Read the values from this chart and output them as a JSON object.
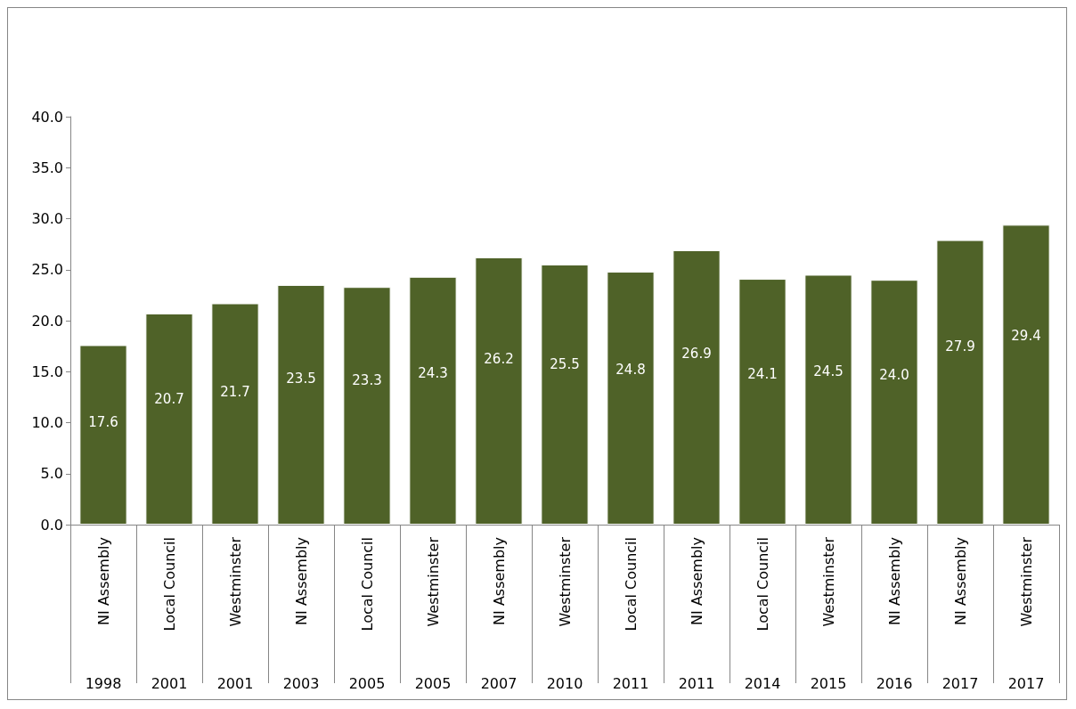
{
  "chart_data": {
    "type": "bar",
    "categories": [
      "NI Assembly\n1998",
      "Local Council\n2001",
      "Westminster\n2001",
      "NI Assembly\n2003",
      "Local Council\n2005",
      "Westminster\n2005",
      "NI Assembly\n2007",
      "Westminster\n2010",
      "Local Council\n2011",
      "NI Assembly\n2011",
      "Local Council\n2014",
      "Westminster\n2015",
      "NI Assembly\n2016",
      "NI Assembly\n2017",
      "Westminster\n2017"
    ],
    "values": [
      17.6,
      20.7,
      21.7,
      23.5,
      23.3,
      24.3,
      26.2,
      25.5,
      24.8,
      26.9,
      24.1,
      24.5,
      24.0,
      27.9,
      29.4
    ],
    "value_labels": [
      "17.6",
      "20.7",
      "21.7",
      "23.5",
      "23.3",
      "24.3",
      "26.2",
      "25.5",
      "24.8",
      "26.9",
      "24.1",
      "24.5",
      "24.0",
      "27.9",
      "29.4"
    ],
    "color": "#4f6228",
    "ylim": [
      0,
      40
    ],
    "yticks": [
      {
        "value": 0,
        "label": "0.0"
      },
      {
        "value": 5,
        "label": "5.0"
      },
      {
        "value": 10,
        "label": "10.0"
      },
      {
        "value": 15,
        "label": "15.0"
      },
      {
        "value": 20,
        "label": "20.0"
      },
      {
        "value": 25,
        "label": "25.0"
      },
      {
        "value": 30,
        "label": "30.0"
      },
      {
        "value": 35,
        "label": "35.0"
      },
      {
        "value": 40,
        "label": "40.0"
      }
    ],
    "grid": false
  }
}
